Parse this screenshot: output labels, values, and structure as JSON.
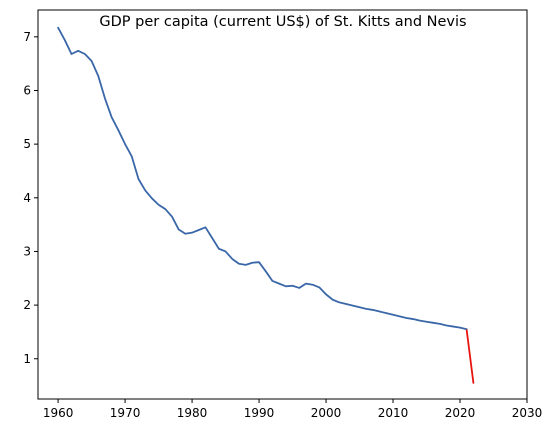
{
  "chart_data": {
    "type": "line",
    "title": "GDP per capita (current US$) of St. Kitts and Nevis",
    "xlabel": "",
    "ylabel": "",
    "xlim": [
      1957,
      2030
    ],
    "ylim": [
      0.25,
      7.5
    ],
    "x_ticks": [
      1960,
      1970,
      1980,
      1990,
      2000,
      2010,
      2020,
      2030
    ],
    "y_ticks": [
      1,
      2,
      3,
      4,
      5,
      6,
      7
    ],
    "grid": false,
    "legend": "none",
    "series": [
      {
        "color": "#3a67a8",
        "x": [
          1960,
          1961,
          1962,
          1963,
          1964,
          1965,
          1966,
          1967,
          1968,
          1969,
          1970,
          1971,
          1972,
          1973,
          1974,
          1975,
          1976,
          1977,
          1978,
          1979,
          1980,
          1981,
          1982,
          1983,
          1984,
          1985,
          1986,
          1987,
          1988,
          1989,
          1990,
          1991,
          1992,
          1993,
          1994,
          1995,
          1996,
          1997,
          1998,
          1999,
          2000,
          2001,
          2002,
          2003,
          2004,
          2005,
          2006,
          2007,
          2008,
          2009,
          2010,
          2011,
          2012,
          2013,
          2014,
          2015,
          2016,
          2017,
          2018,
          2019,
          2020,
          2021
        ],
        "y": [
          7.17,
          6.94,
          6.68,
          6.74,
          6.68,
          6.55,
          6.27,
          5.85,
          5.5,
          5.26,
          5.0,
          4.77,
          4.35,
          4.14,
          3.99,
          3.87,
          3.79,
          3.65,
          3.41,
          3.33,
          3.35,
          3.4,
          3.45,
          3.25,
          3.05,
          3.0,
          2.86,
          2.77,
          2.75,
          2.79,
          2.8,
          2.63,
          2.45,
          2.4,
          2.35,
          2.36,
          2.32,
          2.4,
          2.38,
          2.33,
          2.2,
          2.1,
          2.05,
          2.02,
          1.99,
          1.96,
          1.93,
          1.91,
          1.88,
          1.85,
          1.82,
          1.79,
          1.76,
          1.74,
          1.71,
          1.69,
          1.67,
          1.65,
          1.62,
          1.6,
          1.58,
          1.55
        ]
      },
      {
        "color": "#e8130f",
        "x": [
          2021,
          2022
        ],
        "y": [
          1.53,
          0.55
        ]
      }
    ]
  }
}
